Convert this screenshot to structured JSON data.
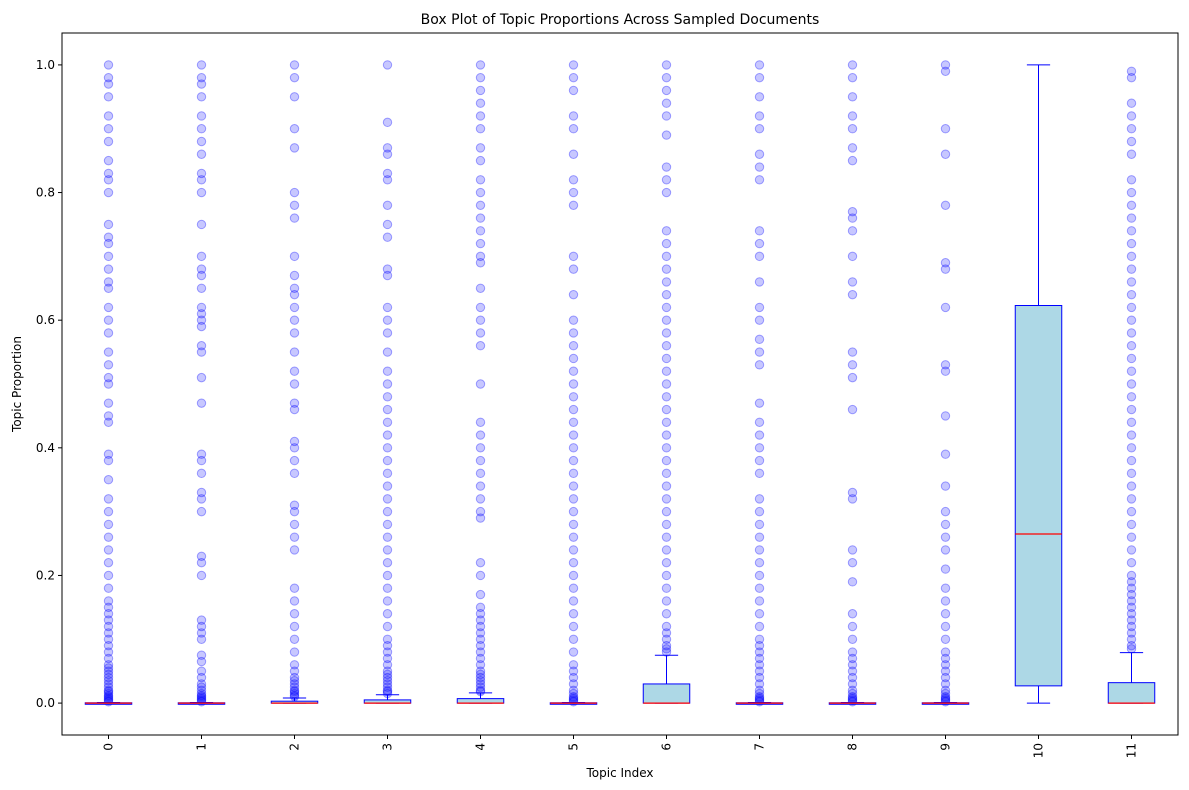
{
  "chart_data": {
    "type": "box",
    "title": "Box Plot of Topic Proportions Across Sampled Documents",
    "xlabel": "Topic Index",
    "ylabel": "Topic Proportion",
    "ylim": [
      -0.05,
      1.05
    ],
    "yticks": [
      "0.0",
      "0.2",
      "0.4",
      "0.6",
      "0.8",
      "1.0"
    ],
    "categories": [
      "0",
      "1",
      "2",
      "3",
      "4",
      "5",
      "6",
      "7",
      "8",
      "9",
      "10",
      "11"
    ],
    "box_color": "#add8e6",
    "edge_color": "#0000ff",
    "median_color": "#ff0000",
    "flier_color": "#0000ff",
    "boxes": [
      {
        "label": "0",
        "q1": 0.0,
        "median": 0.0,
        "q3": 0.0005,
        "whisker_low": 0.0,
        "whisker_high": 0.001,
        "fliers": [
          0.002,
          0.004,
          0.006,
          0.008,
          0.01,
          0.012,
          0.015,
          0.018,
          0.02,
          0.025,
          0.03,
          0.035,
          0.04,
          0.045,
          0.05,
          0.055,
          0.06,
          0.07,
          0.08,
          0.09,
          0.1,
          0.11,
          0.12,
          0.13,
          0.14,
          0.15,
          0.16,
          0.18,
          0.2,
          0.22,
          0.24,
          0.26,
          0.28,
          0.3,
          0.32,
          0.35,
          0.38,
          0.39,
          0.44,
          0.45,
          0.47,
          0.5,
          0.51,
          0.53,
          0.55,
          0.58,
          0.6,
          0.62,
          0.65,
          0.66,
          0.68,
          0.7,
          0.72,
          0.73,
          0.75,
          0.8,
          0.82,
          0.83,
          0.85,
          0.88,
          0.9,
          0.92,
          0.95,
          0.97,
          0.98,
          1.0
        ]
      },
      {
        "label": "1",
        "q1": 0.0,
        "median": 0.0,
        "q3": 0.0005,
        "whisker_low": 0.0,
        "whisker_high": 0.001,
        "fliers": [
          0.002,
          0.004,
          0.006,
          0.008,
          0.01,
          0.012,
          0.015,
          0.02,
          0.025,
          0.03,
          0.04,
          0.05,
          0.065,
          0.075,
          0.1,
          0.11,
          0.12,
          0.13,
          0.2,
          0.22,
          0.23,
          0.3,
          0.32,
          0.33,
          0.36,
          0.38,
          0.39,
          0.47,
          0.51,
          0.55,
          0.56,
          0.59,
          0.6,
          0.61,
          0.62,
          0.65,
          0.67,
          0.68,
          0.7,
          0.75,
          0.8,
          0.82,
          0.83,
          0.86,
          0.88,
          0.9,
          0.92,
          0.95,
          0.97,
          0.98,
          1.0
        ]
      },
      {
        "label": "2",
        "q1": 0.0,
        "median": 0.0,
        "q3": 0.003,
        "whisker_low": 0.0,
        "whisker_high": 0.008,
        "fliers": [
          0.01,
          0.012,
          0.015,
          0.018,
          0.02,
          0.025,
          0.03,
          0.035,
          0.04,
          0.05,
          0.06,
          0.08,
          0.1,
          0.12,
          0.14,
          0.16,
          0.18,
          0.24,
          0.26,
          0.28,
          0.3,
          0.31,
          0.36,
          0.38,
          0.4,
          0.41,
          0.46,
          0.47,
          0.5,
          0.52,
          0.55,
          0.58,
          0.6,
          0.62,
          0.64,
          0.65,
          0.67,
          0.7,
          0.76,
          0.78,
          0.8,
          0.87,
          0.9,
          0.95,
          0.98,
          1.0
        ]
      },
      {
        "label": "3",
        "q1": 0.0,
        "median": 0.0,
        "q3": 0.005,
        "whisker_low": 0.0,
        "whisker_high": 0.013,
        "fliers": [
          0.015,
          0.018,
          0.02,
          0.025,
          0.03,
          0.035,
          0.04,
          0.045,
          0.05,
          0.06,
          0.07,
          0.08,
          0.09,
          0.1,
          0.12,
          0.14,
          0.16,
          0.18,
          0.2,
          0.22,
          0.24,
          0.26,
          0.28,
          0.3,
          0.32,
          0.34,
          0.36,
          0.38,
          0.4,
          0.42,
          0.44,
          0.46,
          0.48,
          0.5,
          0.52,
          0.55,
          0.58,
          0.6,
          0.62,
          0.67,
          0.68,
          0.73,
          0.75,
          0.78,
          0.82,
          0.83,
          0.86,
          0.87,
          0.91,
          1.0
        ]
      },
      {
        "label": "4",
        "q1": 0.0,
        "median": 0.0,
        "q3": 0.007,
        "whisker_low": 0.0,
        "whisker_high": 0.016,
        "fliers": [
          0.018,
          0.02,
          0.025,
          0.03,
          0.035,
          0.04,
          0.045,
          0.05,
          0.06,
          0.07,
          0.08,
          0.09,
          0.1,
          0.11,
          0.12,
          0.13,
          0.14,
          0.15,
          0.17,
          0.2,
          0.22,
          0.29,
          0.3,
          0.32,
          0.34,
          0.36,
          0.38,
          0.4,
          0.42,
          0.44,
          0.5,
          0.56,
          0.58,
          0.6,
          0.62,
          0.65,
          0.69,
          0.7,
          0.72,
          0.74,
          0.76,
          0.78,
          0.8,
          0.82,
          0.85,
          0.87,
          0.9,
          0.92,
          0.94,
          0.96,
          0.98,
          1.0
        ]
      },
      {
        "label": "5",
        "q1": 0.0,
        "median": 0.0,
        "q3": 0.0005,
        "whisker_low": 0.0,
        "whisker_high": 0.001,
        "fliers": [
          0.002,
          0.004,
          0.006,
          0.008,
          0.01,
          0.015,
          0.02,
          0.03,
          0.04,
          0.05,
          0.06,
          0.08,
          0.1,
          0.12,
          0.14,
          0.16,
          0.18,
          0.2,
          0.22,
          0.24,
          0.26,
          0.28,
          0.3,
          0.32,
          0.34,
          0.36,
          0.38,
          0.4,
          0.42,
          0.44,
          0.46,
          0.48,
          0.5,
          0.52,
          0.54,
          0.56,
          0.58,
          0.6,
          0.64,
          0.68,
          0.7,
          0.78,
          0.8,
          0.82,
          0.86,
          0.9,
          0.92,
          0.96,
          0.98,
          1.0
        ]
      },
      {
        "label": "6",
        "q1": 0.0,
        "median": 0.0,
        "q3": 0.03,
        "whisker_low": 0.0,
        "whisker_high": 0.075,
        "fliers": [
          0.08,
          0.085,
          0.09,
          0.1,
          0.11,
          0.12,
          0.14,
          0.16,
          0.18,
          0.2,
          0.22,
          0.24,
          0.26,
          0.28,
          0.3,
          0.32,
          0.34,
          0.36,
          0.38,
          0.4,
          0.42,
          0.44,
          0.46,
          0.48,
          0.5,
          0.52,
          0.54,
          0.56,
          0.58,
          0.6,
          0.62,
          0.64,
          0.66,
          0.68,
          0.7,
          0.72,
          0.74,
          0.8,
          0.82,
          0.84,
          0.89,
          0.92,
          0.94,
          0.96,
          0.98,
          1.0
        ]
      },
      {
        "label": "7",
        "q1": 0.0,
        "median": 0.0,
        "q3": 0.0005,
        "whisker_low": 0.0,
        "whisker_high": 0.001,
        "fliers": [
          0.002,
          0.004,
          0.006,
          0.008,
          0.01,
          0.015,
          0.02,
          0.03,
          0.04,
          0.05,
          0.06,
          0.07,
          0.08,
          0.09,
          0.1,
          0.12,
          0.14,
          0.16,
          0.18,
          0.2,
          0.22,
          0.24,
          0.26,
          0.28,
          0.3,
          0.32,
          0.36,
          0.38,
          0.4,
          0.42,
          0.44,
          0.47,
          0.53,
          0.55,
          0.57,
          0.6,
          0.62,
          0.66,
          0.7,
          0.72,
          0.74,
          0.82,
          0.84,
          0.86,
          0.9,
          0.92,
          0.95,
          0.98,
          1.0
        ]
      },
      {
        "label": "8",
        "q1": 0.0,
        "median": 0.0,
        "q3": 0.0005,
        "whisker_low": 0.0,
        "whisker_high": 0.001,
        "fliers": [
          0.002,
          0.004,
          0.006,
          0.008,
          0.01,
          0.015,
          0.02,
          0.03,
          0.04,
          0.05,
          0.06,
          0.07,
          0.08,
          0.1,
          0.12,
          0.14,
          0.19,
          0.22,
          0.24,
          0.32,
          0.33,
          0.46,
          0.51,
          0.53,
          0.55,
          0.64,
          0.66,
          0.7,
          0.74,
          0.76,
          0.77,
          0.85,
          0.87,
          0.9,
          0.92,
          0.95,
          0.98,
          1.0
        ]
      },
      {
        "label": "9",
        "q1": 0.0,
        "median": 0.0,
        "q3": 0.0005,
        "whisker_low": 0.0,
        "whisker_high": 0.001,
        "fliers": [
          0.002,
          0.004,
          0.006,
          0.008,
          0.01,
          0.015,
          0.02,
          0.03,
          0.04,
          0.05,
          0.06,
          0.07,
          0.08,
          0.1,
          0.12,
          0.14,
          0.16,
          0.18,
          0.21,
          0.24,
          0.26,
          0.28,
          0.3,
          0.34,
          0.39,
          0.45,
          0.52,
          0.53,
          0.62,
          0.68,
          0.69,
          0.78,
          0.86,
          0.9,
          0.99,
          1.0
        ]
      },
      {
        "label": "10",
        "q1": 0.027,
        "median": 0.265,
        "q3": 0.623,
        "whisker_low": 0.0,
        "whisker_high": 1.0,
        "fliers": []
      },
      {
        "label": "11",
        "q1": 0.0,
        "median": 0.0,
        "q3": 0.032,
        "whisker_low": 0.0,
        "whisker_high": 0.079,
        "fliers": [
          0.085,
          0.09,
          0.1,
          0.11,
          0.12,
          0.13,
          0.14,
          0.15,
          0.16,
          0.17,
          0.18,
          0.19,
          0.2,
          0.22,
          0.24,
          0.26,
          0.28,
          0.3,
          0.32,
          0.34,
          0.36,
          0.38,
          0.4,
          0.42,
          0.44,
          0.46,
          0.48,
          0.5,
          0.52,
          0.54,
          0.56,
          0.58,
          0.6,
          0.62,
          0.64,
          0.66,
          0.68,
          0.7,
          0.72,
          0.74,
          0.76,
          0.78,
          0.8,
          0.82,
          0.86,
          0.88,
          0.9,
          0.92,
          0.94,
          0.98,
          0.99
        ]
      }
    ]
  }
}
